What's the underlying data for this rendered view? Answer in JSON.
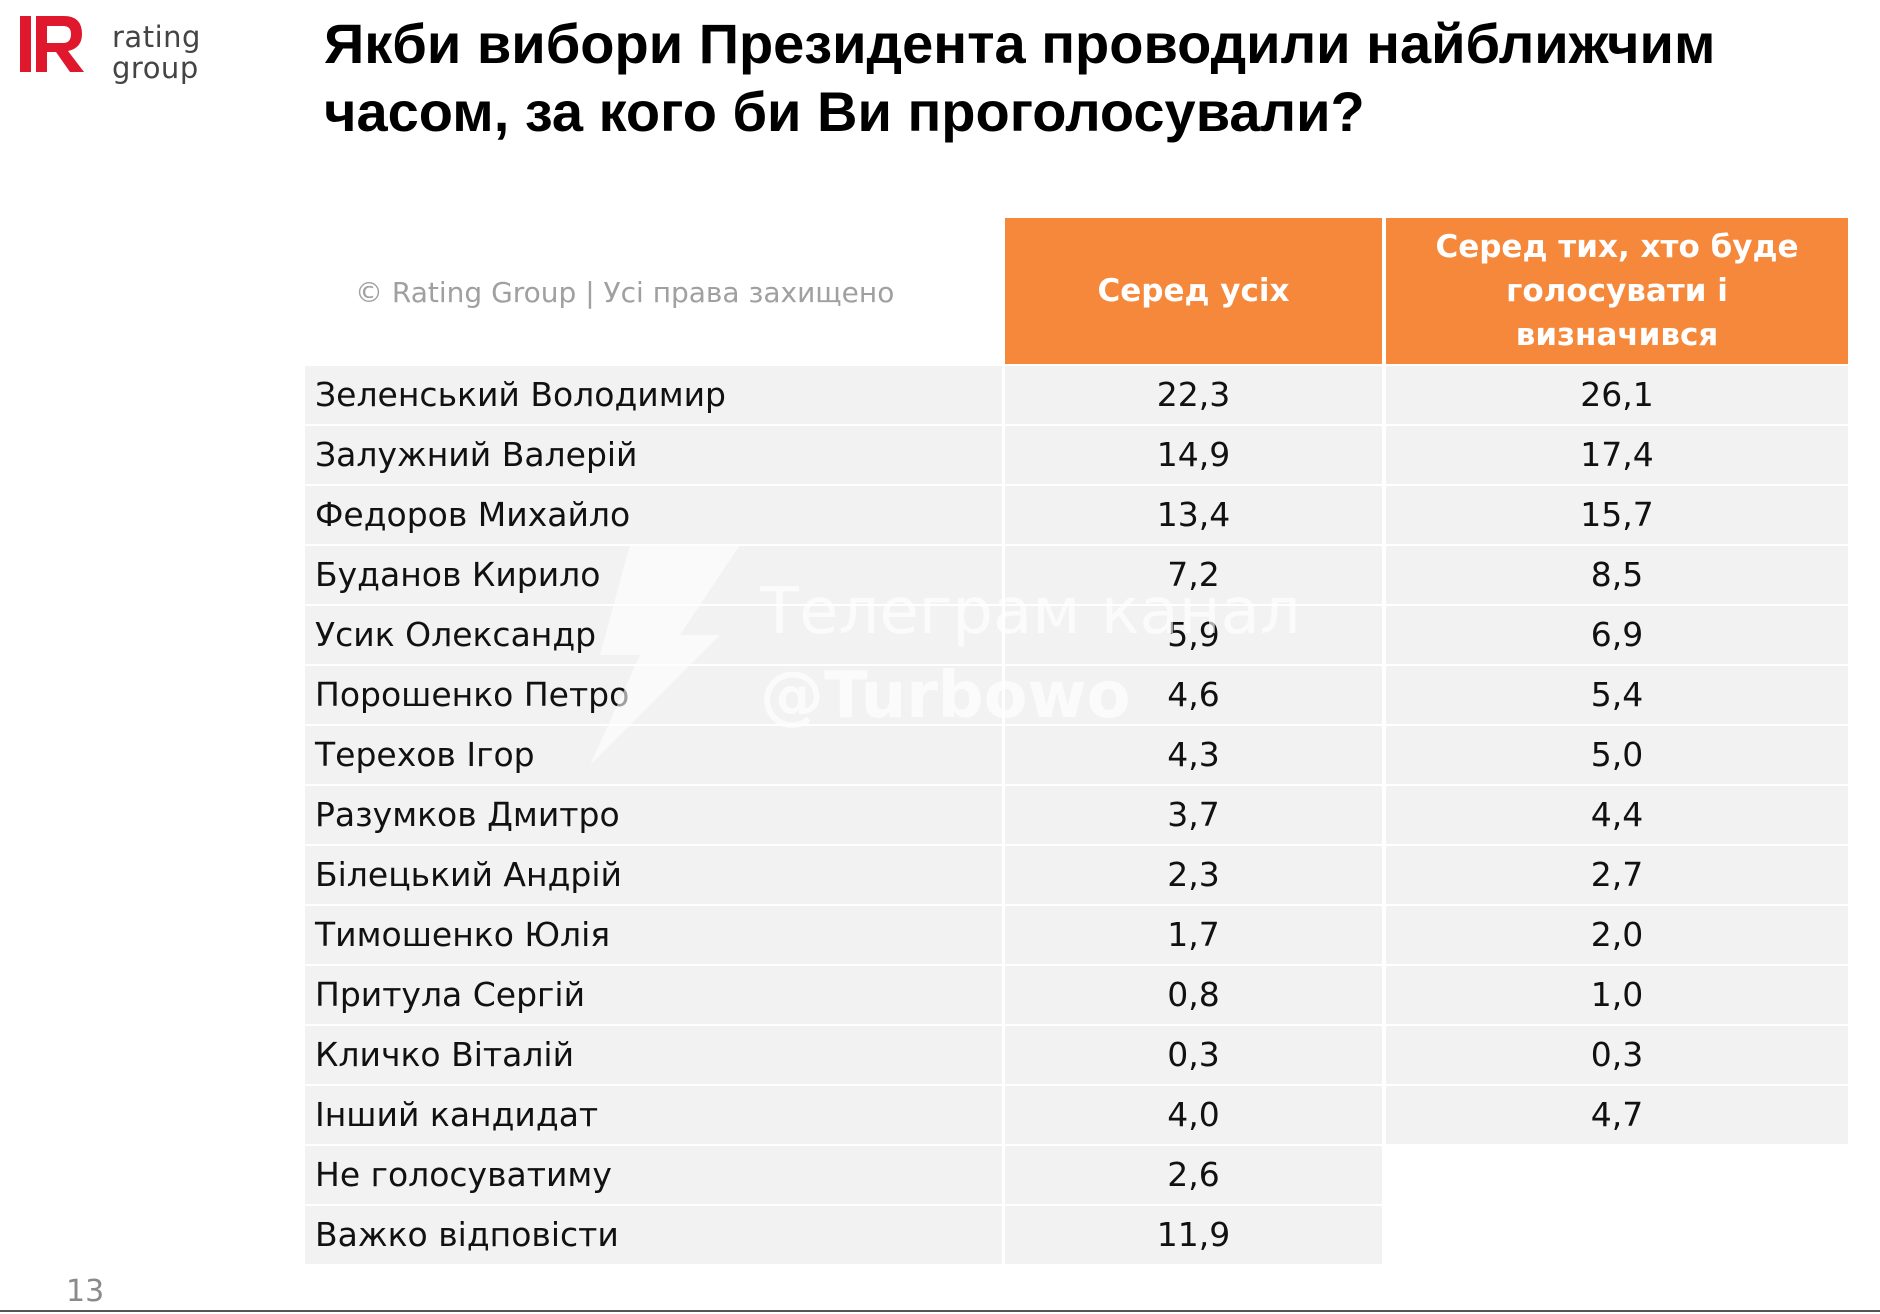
{
  "logo": {
    "line1": "rating",
    "line2": "group",
    "accent": "#e0182d"
  },
  "title": "Якби вибори Президента проводили найближчим часом, за кого би Ви проголосували?",
  "copyright": "© Rating Group | Усі права захищено",
  "table": {
    "headers": [
      "Серед усіх",
      "Серед тих, хто буде голосувати і визначився"
    ],
    "header_color": "#f5883b",
    "rows": [
      {
        "name": "Зеленський Володимир",
        "all": "22,3",
        "decided": "26,1"
      },
      {
        "name": "Залужний Валерій",
        "all": "14,9",
        "decided": "17,4"
      },
      {
        "name": "Федоров Михайло",
        "all": "13,4",
        "decided": "15,7"
      },
      {
        "name": "Буданов Кирило",
        "all": "7,2",
        "decided": "8,5"
      },
      {
        "name": "Усик Олександр",
        "all": "5,9",
        "decided": "6,9"
      },
      {
        "name": "Порошенко Петро",
        "all": "4,6",
        "decided": "5,4"
      },
      {
        "name": "Терехов Ігор",
        "all": "4,3",
        "decided": "5,0"
      },
      {
        "name": "Разумков Дмитро",
        "all": "3,7",
        "decided": "4,4"
      },
      {
        "name": "Білецький Андрій",
        "all": "2,3",
        "decided": "2,7"
      },
      {
        "name": "Тимошенко Юлія",
        "all": "1,7",
        "decided": "2,0"
      },
      {
        "name": "Притула Сергій",
        "all": "0,8",
        "decided": "1,0"
      },
      {
        "name": "Кличко Віталій",
        "all": "0,3",
        "decided": "0,3"
      },
      {
        "name": "Інший кандидат",
        "all": "4,0",
        "decided": "4,7"
      },
      {
        "name": "Не голосуватиму",
        "all": "2,6",
        "decided": ""
      },
      {
        "name": "Важко відповісти",
        "all": "11,9",
        "decided": ""
      }
    ]
  },
  "watermark": {
    "line1": "Телеграм канал",
    "line2": "@Turbowo",
    "icon": "lightning-bolt-icon"
  },
  "page_number": "13"
}
